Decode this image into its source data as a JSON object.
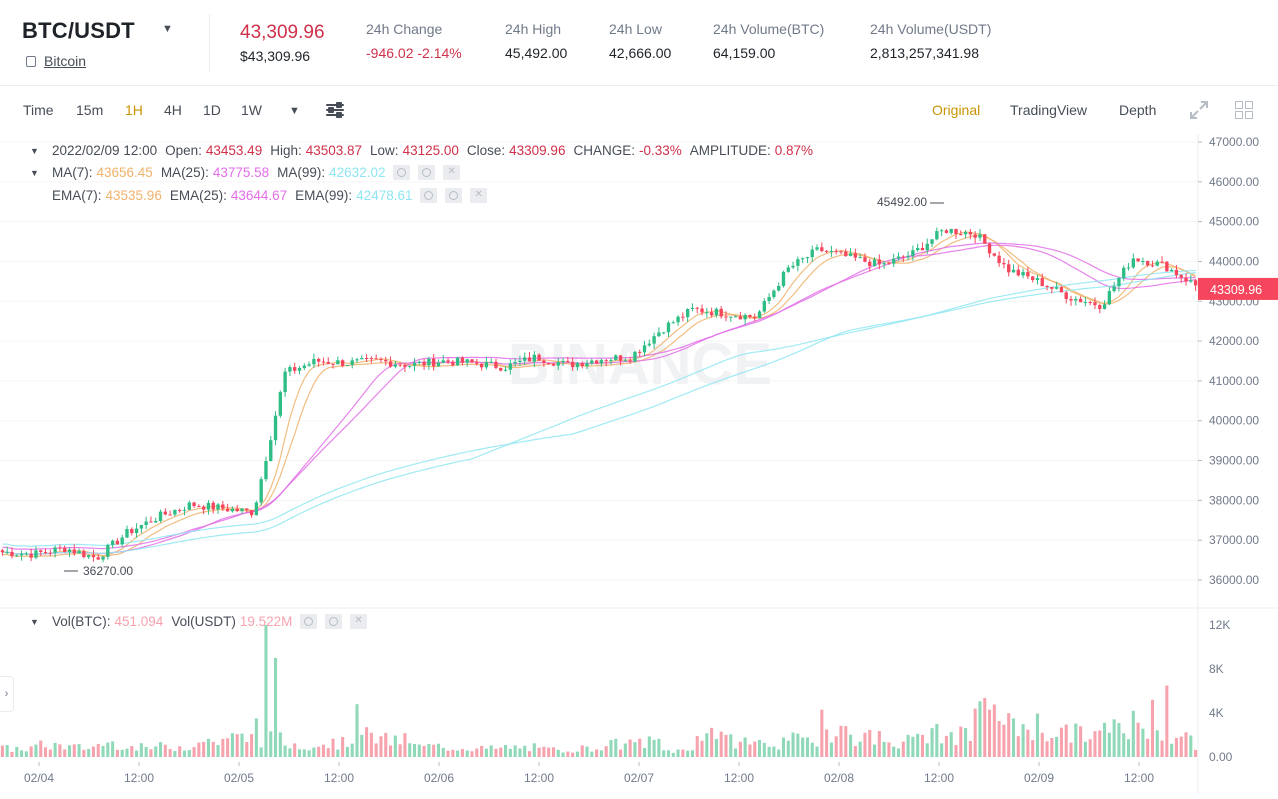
{
  "ticker": {
    "pair": "BTC/USDT",
    "coin_name": "Bitcoin",
    "last_price": "43,309.96",
    "last_price_usd": "$43,309.96",
    "change_label": "24h Change",
    "change_value": "-946.02 -2.14%",
    "high_label": "24h High",
    "high_value": "45,492.00",
    "low_label": "24h Low",
    "low_value": "42,666.00",
    "vol_btc_label": "24h Volume(BTC)",
    "vol_btc_value": "64,159.00",
    "vol_usdt_label": "24h Volume(USDT)",
    "vol_usdt_value": "2,813,257,341.98"
  },
  "toolbar": {
    "intervals": [
      "Time",
      "15m",
      "1H",
      "4H",
      "1D",
      "1W"
    ],
    "active_interval": "1H",
    "views": [
      "Original",
      "TradingView",
      "Depth"
    ],
    "active_view": "Original"
  },
  "legend": {
    "candle": {
      "datetime": "2022/02/09 12:00",
      "open_label": "Open:",
      "open": "43453.49",
      "high_label": "High:",
      "high": "43503.87",
      "low_label": "Low:",
      "low": "43125.00",
      "close_label": "Close:",
      "close": "43309.96",
      "change_label": "CHANGE:",
      "change": "-0.33%",
      "amplitude_label": "AMPLITUDE:",
      "amplitude": "0.87%"
    },
    "ma": [
      {
        "label": "MA(7):",
        "value": "43656.45",
        "color": "#f0b26b"
      },
      {
        "label": "MA(25):",
        "value": "43775.58",
        "color": "#e26ee8"
      },
      {
        "label": "MA(99):",
        "value": "42632.02",
        "color": "#8fe6f2"
      }
    ],
    "ema": [
      {
        "label": "EMA(7):",
        "value": "43535.96",
        "color": "#f0b26b"
      },
      {
        "label": "EMA(25):",
        "value": "43644.67",
        "color": "#e26ee8"
      },
      {
        "label": "EMA(99):",
        "value": "42478.61",
        "color": "#8fe6f2"
      }
    ],
    "volume": {
      "btc_label": "Vol(BTC):",
      "btc_value": "451.094",
      "usdt_label": "Vol(USDT)",
      "usdt_value": "19.522M"
    }
  },
  "chart_data": {
    "type": "candlestick",
    "interval": "1H",
    "price_axis": {
      "ticks": [
        "47000.00",
        "46000.00",
        "45000.00",
        "44000.00",
        "43000.00",
        "42000.00",
        "41000.00",
        "40000.00",
        "39000.00",
        "38000.00",
        "37000.00",
        "36000.00"
      ],
      "min": 35600,
      "max": 47000
    },
    "volume_axis": {
      "ticks": [
        "12K",
        "8K",
        "4K",
        "0.00"
      ],
      "max": 12000
    },
    "x_ticks": [
      "02/04",
      "12:00",
      "02/05",
      "12:00",
      "02/06",
      "12:00",
      "02/07",
      "12:00",
      "02/08",
      "12:00",
      "02/09",
      "12:00"
    ],
    "current_price_label": "43309.96",
    "max_annotation": "45492.00",
    "min_annotation": "36270.00",
    "max_price": 45492,
    "min_price": 36270,
    "watermark": "BINANCE",
    "close_anchors": [
      36700,
      36650,
      36800,
      36550,
      37200,
      37600,
      37900,
      37800,
      37700,
      41200,
      41500,
      41450,
      41500,
      41400,
      41500,
      41450,
      41350,
      41600,
      41400,
      41550,
      41600,
      42300,
      42800,
      42700,
      42600,
      43800,
      44300,
      44100,
      43900,
      44200,
      44800,
      44700,
      43800,
      43500,
      43100,
      42900,
      44100,
      43900,
      43400
    ],
    "volume_anchors": [
      800,
      1100,
      900,
      1300,
      900,
      1000,
      1500,
      1800,
      1700,
      1200,
      1300,
      2000,
      1600,
      1000,
      900,
      800,
      900,
      700,
      800,
      1200,
      1400,
      600,
      2500,
      1500,
      1300,
      1600,
      2600,
      1900,
      1500,
      2200,
      2000,
      4000,
      3000,
      2400,
      2200,
      2600,
      2500,
      1800,
      700
    ]
  }
}
